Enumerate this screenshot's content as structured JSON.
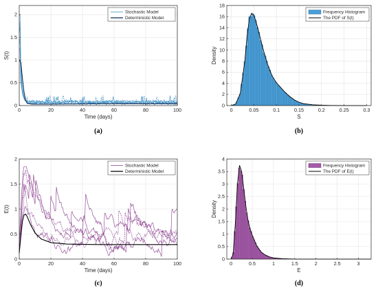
{
  "chart_data": [
    {
      "id": "a",
      "caption": "(a)",
      "type": "line",
      "xlabel": "Time (days)",
      "ylabel": "S(t)",
      "xlim": [
        0,
        100
      ],
      "ylim": [
        0,
        2.2
      ],
      "xticks": [
        0,
        20,
        40,
        60,
        80,
        100
      ],
      "yticks": [
        0,
        0.5,
        1,
        1.5,
        2
      ],
      "ytick_labels": [
        "0",
        "0.5",
        "1",
        "1.5",
        "2"
      ],
      "grid": true,
      "legend_position": "top-right",
      "legend": [
        "Stochastic Model",
        "Deterministic Model"
      ],
      "series": [
        {
          "name": "Stochastic Model",
          "color": "#3a8fc4",
          "kind": "stochastic",
          "initial": 1.9,
          "peak": 2.0,
          "decay_by": 5,
          "level": 0.07,
          "noise": 0.06,
          "runs": 5
        },
        {
          "name": "Deterministic Model",
          "color": "#0b2a55",
          "kind": "deterministic",
          "points": [
            [
              0,
              1.0
            ],
            [
              1,
              0.95
            ],
            [
              2,
              0.6
            ],
            [
              3,
              0.3
            ],
            [
              4,
              0.12
            ],
            [
              5,
              0.05
            ],
            [
              8,
              0.03
            ],
            [
              20,
              0.03
            ],
            [
              50,
              0.04
            ],
            [
              100,
              0.04
            ]
          ]
        }
      ]
    },
    {
      "id": "b",
      "caption": "(b)",
      "type": "bar",
      "xlabel": "S",
      "ylabel": "Density",
      "xlim": [
        -0.01,
        0.31
      ],
      "ylim": [
        0,
        18
      ],
      "xticks": [
        0,
        0.05,
        0.1,
        0.15,
        0.2,
        0.25,
        0.3
      ],
      "xtick_labels": [
        "0",
        "0.05",
        "0.1",
        "0.15",
        "0.2",
        "0.25",
        "0.3"
      ],
      "yticks": [
        0,
        2,
        4,
        6,
        8,
        10,
        12,
        14,
        16,
        18
      ],
      "grid": true,
      "legend_position": "top-right",
      "legend": [
        "Frequency Histogram",
        "The PDF of S(t)"
      ],
      "bar_color": "#4a9fd8",
      "bar_edge": "#1f5f8f",
      "pdf_color": "#000000",
      "pdf_points": [
        [
          0.0,
          0.0
        ],
        [
          0.01,
          0.3
        ],
        [
          0.02,
          2.2
        ],
        [
          0.03,
          8.0
        ],
        [
          0.035,
          12.5
        ],
        [
          0.04,
          15.6
        ],
        [
          0.045,
          16.6
        ],
        [
          0.05,
          16.3
        ],
        [
          0.055,
          15.0
        ],
        [
          0.06,
          13.5
        ],
        [
          0.07,
          10.3
        ],
        [
          0.08,
          7.5
        ],
        [
          0.09,
          5.4
        ],
        [
          0.1,
          4.1
        ],
        [
          0.11,
          3.2
        ],
        [
          0.12,
          2.3
        ],
        [
          0.13,
          1.6
        ],
        [
          0.14,
          1.0
        ],
        [
          0.15,
          0.6
        ],
        [
          0.16,
          0.35
        ],
        [
          0.18,
          0.15
        ],
        [
          0.2,
          0.06
        ],
        [
          0.22,
          0.02
        ],
        [
          0.25,
          0.0
        ],
        [
          0.3,
          0.0
        ]
      ],
      "bin_width": 0.0035
    },
    {
      "id": "c",
      "caption": "(c)",
      "type": "line",
      "xlabel": "Time (days)",
      "ylabel": "E(t)",
      "xlim": [
        0,
        100
      ],
      "ylim": [
        0,
        2.0
      ],
      "xticks": [
        0,
        20,
        40,
        60,
        80,
        100
      ],
      "yticks": [
        0,
        0.5,
        1,
        1.5,
        2
      ],
      "ytick_labels": [
        "0",
        "0.5",
        "1",
        "1.5",
        "2"
      ],
      "grid": true,
      "legend_position": "top-right",
      "legend": [
        "Stochastic Model",
        "Deterministic Model"
      ],
      "series": [
        {
          "name": "Stochastic Model",
          "color": "#8a3d8f",
          "kind": "stochastic_e",
          "runs": 5,
          "peak": 1.8,
          "level": 0.35,
          "noise": 0.22
        },
        {
          "name": "Deterministic Model",
          "color": "#000000",
          "kind": "deterministic",
          "points": [
            [
              0,
              0.12
            ],
            [
              1,
              0.45
            ],
            [
              2,
              0.75
            ],
            [
              3,
              0.88
            ],
            [
              4,
              0.9
            ],
            [
              5,
              0.85
            ],
            [
              7,
              0.7
            ],
            [
              10,
              0.52
            ],
            [
              14,
              0.4
            ],
            [
              20,
              0.33
            ],
            [
              30,
              0.3
            ],
            [
              50,
              0.29
            ],
            [
              100,
              0.29
            ]
          ]
        }
      ]
    },
    {
      "id": "d",
      "caption": "(d)",
      "type": "bar",
      "xlabel": "E",
      "ylabel": "Density",
      "xlim": [
        -0.1,
        3.3
      ],
      "ylim": [
        0,
        4
      ],
      "xticks": [
        0,
        0.5,
        1,
        1.5,
        2,
        2.5,
        3
      ],
      "xtick_labels": [
        "0",
        "0.5",
        "1",
        "1.5",
        "2",
        "2.5",
        "3"
      ],
      "yticks": [
        0,
        0.5,
        1,
        1.5,
        2,
        2.5,
        3,
        3.5,
        4
      ],
      "ytick_labels": [
        "0",
        "0.5",
        "1",
        "1.5",
        "2",
        "2.5",
        "3",
        "3.5",
        "4"
      ],
      "grid": true,
      "legend_position": "top-right",
      "legend": [
        "Frequency Histogram",
        "The PDF of E(t)"
      ],
      "bar_color": "#a45aa8",
      "bar_edge": "#5e2462",
      "pdf_color": "#000000",
      "pdf_points": [
        [
          0.0,
          0.0
        ],
        [
          0.05,
          0.2
        ],
        [
          0.1,
          1.4
        ],
        [
          0.15,
          3.0
        ],
        [
          0.2,
          3.75
        ],
        [
          0.25,
          3.5
        ],
        [
          0.3,
          2.8
        ],
        [
          0.35,
          2.1
        ],
        [
          0.4,
          1.55
        ],
        [
          0.45,
          1.2
        ],
        [
          0.5,
          0.95
        ],
        [
          0.6,
          0.55
        ],
        [
          0.7,
          0.3
        ],
        [
          0.8,
          0.17
        ],
        [
          0.9,
          0.09
        ],
        [
          1.0,
          0.05
        ],
        [
          1.2,
          0.02
        ],
        [
          1.5,
          0.0
        ],
        [
          3.3,
          0.0
        ]
      ],
      "bin_width": 0.035
    }
  ]
}
